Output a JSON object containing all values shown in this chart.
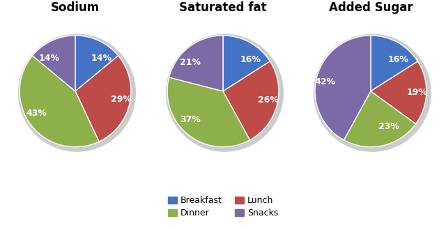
{
  "charts": [
    {
      "title": "Sodium",
      "values": [
        14,
        29,
        43,
        14
      ],
      "labels": [
        "14%",
        "29%",
        "43%",
        "14%"
      ],
      "startangle": 90
    },
    {
      "title": "Saturated fat",
      "values": [
        16,
        26,
        37,
        21
      ],
      "labels": [
        "16%",
        "26%",
        "37%",
        "21%"
      ],
      "startangle": 90
    },
    {
      "title": "Added Sugar",
      "values": [
        16,
        19,
        23,
        42
      ],
      "labels": [
        "16%",
        "19%",
        "23%",
        "42%"
      ],
      "startangle": 90
    }
  ],
  "categories": [
    "Breakfast",
    "Lunch",
    "Dinner",
    "Snacks"
  ],
  "colors": [
    "#4472C4",
    "#BE4B48",
    "#8DB04A",
    "#7C6AA6"
  ],
  "text_color": "#FFFFFF",
  "title_fontsize": 12,
  "label_fontsize": 9,
  "legend_fontsize": 9,
  "shadow_color": "#CCCCCC",
  "edge_color": "#FFFFFF"
}
